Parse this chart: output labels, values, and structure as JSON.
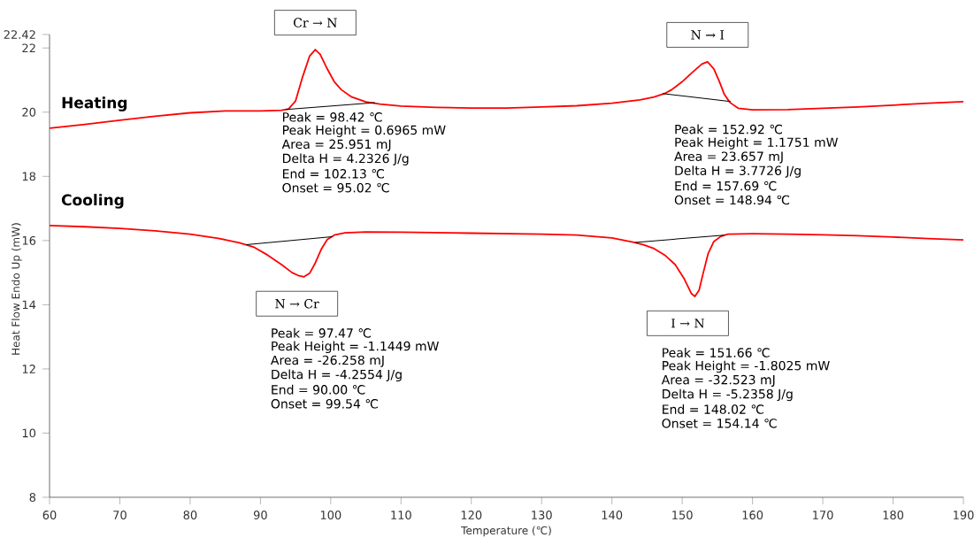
{
  "chart_data": {
    "type": "line",
    "xlabel": "Temperature (℃)",
    "ylabel": "Heat Flow Endo Up (mW)",
    "xlim": [
      60,
      190
    ],
    "ylim": [
      8,
      22.42
    ],
    "xticks": [
      60,
      70,
      80,
      90,
      100,
      110,
      120,
      130,
      140,
      150,
      160,
      170,
      180,
      190
    ],
    "yticks": [
      8,
      10,
      12,
      14,
      16,
      18,
      20,
      22,
      22.42
    ],
    "series": [
      {
        "name": "Heating",
        "color": "#ff0000",
        "x": [
          60,
          65,
          70,
          75,
          80,
          85,
          90,
          93,
          94,
          95,
          96,
          97,
          97.8,
          98.5,
          99.5,
          100.5,
          101.5,
          103,
          105,
          107,
          110,
          115,
          120,
          125,
          130,
          135,
          140,
          144,
          146,
          147.5,
          148.5,
          150,
          151.5,
          152.8,
          153.6,
          154.5,
          155.3,
          156,
          156.8,
          158,
          160,
          165,
          170,
          175,
          180,
          185,
          190
        ],
        "values": [
          19.5,
          19.62,
          19.75,
          19.87,
          19.98,
          20.04,
          20.04,
          20.06,
          20.1,
          20.35,
          21.1,
          21.75,
          21.95,
          21.8,
          21.35,
          20.95,
          20.7,
          20.47,
          20.32,
          20.25,
          20.19,
          20.15,
          20.13,
          20.13,
          20.16,
          20.2,
          20.28,
          20.38,
          20.47,
          20.58,
          20.7,
          20.95,
          21.25,
          21.5,
          21.57,
          21.35,
          20.95,
          20.55,
          20.3,
          20.12,
          20.07,
          20.08,
          20.12,
          20.16,
          20.22,
          20.28,
          20.33
        ]
      },
      {
        "name": "Cooling",
        "color": "#ff0000",
        "x": [
          60,
          65,
          70,
          75,
          80,
          84,
          87,
          89,
          91,
          93,
          94.5,
          95.5,
          96.2,
          97,
          97.8,
          98.7,
          99.5,
          100.5,
          102,
          105,
          110,
          120,
          130,
          135,
          140,
          143,
          144.5,
          146,
          147.5,
          149,
          150.3,
          151.3,
          151.8,
          152.4,
          153,
          153.7,
          154.5,
          155.5,
          156.5,
          160,
          165,
          170,
          175,
          180,
          185,
          190
        ],
        "values": [
          16.47,
          16.43,
          16.38,
          16.3,
          16.2,
          16.07,
          15.93,
          15.8,
          15.55,
          15.25,
          15.0,
          14.9,
          14.87,
          14.98,
          15.3,
          15.75,
          16.03,
          16.17,
          16.24,
          16.27,
          16.26,
          16.23,
          16.2,
          16.17,
          16.08,
          15.95,
          15.87,
          15.75,
          15.55,
          15.25,
          14.8,
          14.35,
          14.26,
          14.45,
          15.0,
          15.6,
          15.97,
          16.13,
          16.2,
          16.21,
          16.2,
          16.18,
          16.15,
          16.11,
          16.06,
          16.02
        ]
      },
      {
        "color": "#000000",
        "x": [
          93.6,
          106.3
        ],
        "values": [
          20.08,
          20.3
        ]
      },
      {
        "color": "#000000",
        "x": [
          147.2,
          156.9
        ],
        "values": [
          20.58,
          20.33
        ]
      },
      {
        "color": "#000000",
        "x": [
          88.0,
          100.2
        ],
        "values": [
          15.87,
          16.12
        ]
      },
      {
        "color": "#000000",
        "x": [
          143.3,
          156.0
        ],
        "values": [
          15.94,
          16.17
        ]
      }
    ],
    "annotations": [
      {
        "text": "Cr → N",
        "x": 97.8,
        "y": 21.95
      },
      {
        "text": "N → I",
        "x": 153.6,
        "y": 21.57
      },
      {
        "text": "N → Cr",
        "x": 96.2,
        "y": 14.87
      },
      {
        "text": "I → N",
        "x": 151.8,
        "y": 14.26
      },
      "Peak = 98.42 ℃",
      "Peak Height = 0.6965 mW",
      "Area = 25.951 mJ",
      "Delta H = 4.2326 J/g",
      "End = 102.13 ℃",
      "Onset = 95.02 ℃",
      "Peak = 152.92 ℃",
      "Peak Height = 1.1751 mW",
      "Area = 23.657 mJ",
      "Delta H = 3.7726 J/g",
      "End = 157.69 ℃",
      "Onset = 148.94 ℃",
      "Peak = 97.47 ℃",
      "Peak Height = -1.1449 mW",
      "Area = -26.258 mJ",
      "Delta H = -4.2554 J/g",
      "End = 90.00 ℃",
      "Onset = 99.54 ℃",
      "Peak = 151.66 ℃",
      "Peak Height = -1.8025 mW",
      "Area = -32.523 mJ",
      "Delta H = -5.2358 J/g",
      "End = 148.02 ℃",
      "Onset = 154.14 ℃"
    ]
  }
}
